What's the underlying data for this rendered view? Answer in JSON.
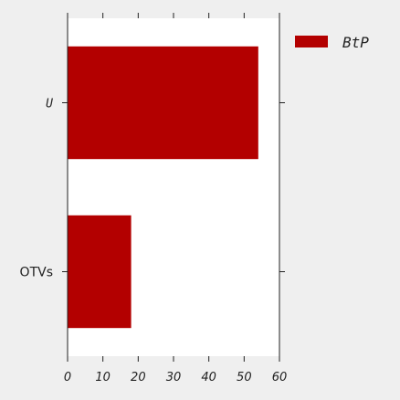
{
  "chart_data": {
    "type": "bar",
    "orientation": "horizontal",
    "categories": [
      "U",
      "OTVs"
    ],
    "series": [
      {
        "name": "BtP",
        "values": [
          54,
          18
        ]
      }
    ],
    "xlim": [
      0,
      60
    ],
    "xticks": [
      0,
      10,
      20,
      30,
      40,
      50,
      60
    ],
    "xlabel": "",
    "ylabel": "",
    "title": "",
    "grid": false,
    "legend": "outside-top-right",
    "colors": {
      "bar": "#b30000",
      "plot_bg": "#ffffff",
      "page_bg": "#efefef",
      "axis": "#222222"
    }
  }
}
